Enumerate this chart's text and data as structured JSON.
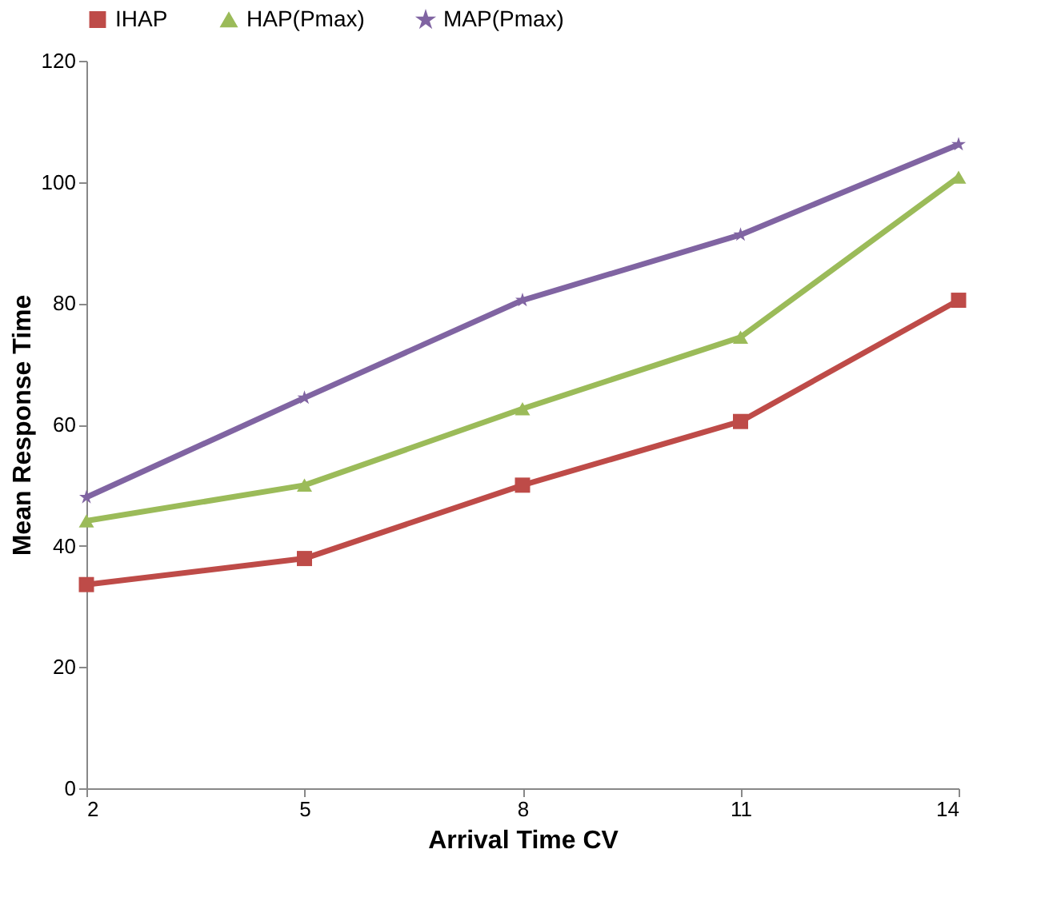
{
  "chart_data": {
    "type": "line",
    "xlabel": "Arrival Time CV",
    "ylabel": "Mean Response Time",
    "x": [
      2,
      5,
      8,
      11,
      14
    ],
    "xlim": [
      2,
      14
    ],
    "xticks": [
      2,
      5,
      8,
      11,
      14
    ],
    "ylim": [
      0,
      120
    ],
    "yticks": [
      0,
      20,
      40,
      60,
      80,
      100,
      120
    ],
    "legend": "top",
    "series": [
      {
        "name": "IHAP",
        "color": "#be4b48",
        "marker": "square",
        "values": [
          33.6,
          37.9,
          50,
          60.5,
          80.5
        ]
      },
      {
        "name": "HAP(Pmax)",
        "color": "#9bbb59",
        "marker": "triangle",
        "values": [
          44.1,
          50,
          62.6,
          74.4,
          100.8
        ]
      },
      {
        "name": "MAP(Pmax)",
        "color": "#8064a2",
        "marker": "star",
        "values": [
          48,
          64.4,
          80.5,
          91.3,
          106.2
        ]
      }
    ]
  }
}
